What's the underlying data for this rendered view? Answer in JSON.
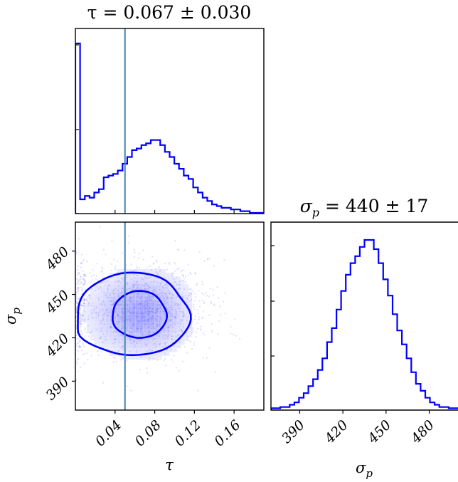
{
  "chart_data": [
    {
      "type": "histogram",
      "panel": "tau-marginal",
      "title": "τ = 0.067 ± 0.030",
      "x_range": [
        0.0,
        0.19
      ],
      "truth_value": 0.05,
      "bin_width": 0.00475,
      "bin_counts": [
        100,
        8,
        10,
        9,
        12,
        14,
        21,
        22,
        23,
        25,
        29,
        33,
        37,
        38,
        40,
        41,
        43,
        43,
        40,
        36,
        33,
        29,
        26,
        22,
        20,
        15,
        12,
        9,
        7,
        5,
        4,
        3,
        3,
        2,
        2,
        1,
        1,
        0,
        0,
        0
      ],
      "line_color": "#0000ff",
      "truth_color": "#4682b4"
    },
    {
      "type": "histogram",
      "panel": "sigma-marginal",
      "title": "σp = 440 ± 17",
      "x_range": [
        370,
        500
      ],
      "bin_width": 3.25,
      "bin_counts": [
        0.5,
        0.5,
        1,
        1,
        2,
        3,
        5,
        7,
        10,
        13,
        17,
        22,
        29,
        35,
        43,
        51,
        58,
        63,
        66,
        70,
        73,
        73,
        69,
        63,
        56,
        49,
        41,
        34,
        28,
        22,
        16,
        11,
        8,
        5,
        3,
        2,
        1,
        1,
        0.5,
        0.5
      ],
      "tick_labels": [
        "390",
        "420",
        "450",
        "480"
      ],
      "xlabel": "σp",
      "line_color": "#0000ff"
    },
    {
      "type": "scatter",
      "panel": "tau-sigma-joint",
      "x_range": [
        0.0,
        0.19
      ],
      "y_range": [
        370,
        500
      ],
      "x_tick_labels": [
        "0.04",
        "0.08",
        "0.12",
        "0.16"
      ],
      "y_tick_labels": [
        "390",
        "420",
        "450",
        "480"
      ],
      "xlabel": "τ",
      "ylabel": "σp",
      "truth_value": 0.05,
      "point_color": "#4b4bff",
      "contour_color": "#0000ff"
    }
  ],
  "labels": {
    "tau_title": "τ = 0.067 ± 0.030",
    "sigma_title_main": "σ",
    "sigma_title_sub": "p",
    "sigma_title_rest": " = 440 ± 17",
    "tau_axis": "τ",
    "sigma_axis_main": "σ",
    "sigma_axis_sub": "p"
  }
}
